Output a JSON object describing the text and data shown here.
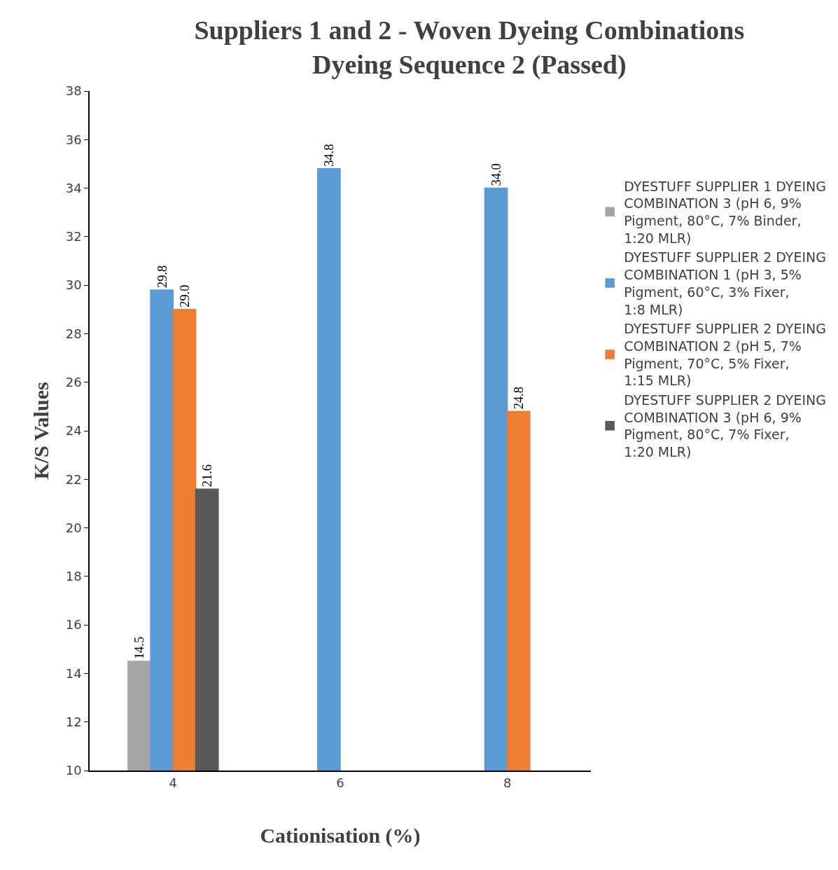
{
  "chart_data": {
    "type": "bar",
    "title": "Suppliers 1 and 2 - Woven Dyeing Combinations Dyeing Sequence 2 (Passed)",
    "xlabel": "Cationisation (%)",
    "ylabel": "K/S Values",
    "categories": [
      "4",
      "6",
      "8"
    ],
    "ylim": [
      10,
      38
    ],
    "yticks": [
      10,
      12,
      14,
      16,
      18,
      20,
      22,
      24,
      26,
      28,
      30,
      32,
      34,
      36,
      38
    ],
    "grid": false,
    "legend": "right",
    "series": [
      {
        "name": "DYESTUFF SUPPLIER 1 DYEING COMBINATION 3 (pH 6, 9% Pigment, 80°C, 7% Binder, 1:20 MLR)",
        "color": "#a5a5a5",
        "values": [
          14.5,
          null,
          null
        ],
        "value_labels": [
          "14.5",
          null,
          null
        ]
      },
      {
        "name": "DYESTUFF SUPPLIER 2 DYEING COMBINATION 1 (pH 3, 5% Pigment, 60°C, 3% Fixer, 1:8 MLR)",
        "color": "#5b9bd5",
        "values": [
          29.8,
          34.8,
          34.0
        ],
        "value_labels": [
          "29.8",
          "34.8",
          "34.0"
        ]
      },
      {
        "name": "DYESTUFF SUPPLIER 2 DYEING COMBINATION 2 (pH 5, 7% Pigment, 70°C, 5% Fixer, 1:15 MLR)",
        "color": "#ed7d31",
        "values": [
          29.0,
          null,
          24.8
        ],
        "value_labels": [
          "29.0",
          null,
          "24.8"
        ]
      },
      {
        "name": "DYESTUFF SUPPLIER 2 DYEING COMBINATION 3 (pH 6, 9% Pigment, 80°C, 7% Fixer, 1:20 MLR)",
        "color": "#595959",
        "values": [
          21.6,
          null,
          null
        ],
        "value_labels": [
          "21.6",
          null,
          null
        ]
      }
    ]
  }
}
